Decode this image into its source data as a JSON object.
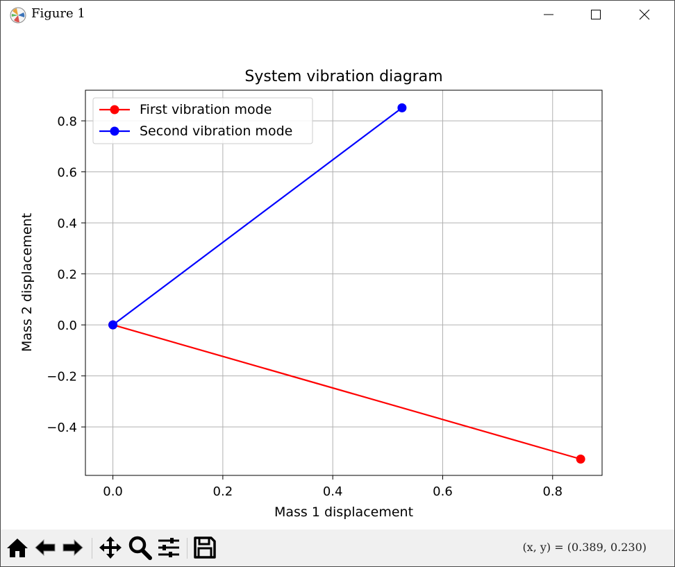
{
  "window": {
    "title": "Figure 1",
    "icon": "matplotlib-icon",
    "controls": [
      "minimize-icon",
      "maximize-icon",
      "close-icon"
    ]
  },
  "toolbar": {
    "buttons": [
      "home-icon",
      "back-arrow-icon",
      "forward-arrow-icon",
      "pan-icon",
      "zoom-magnifier-icon",
      "configure-subplots-icon",
      "save-floppy-icon"
    ],
    "coords_label": "(x, y) = (0.389, 0.230)"
  },
  "chart_data": {
    "type": "line",
    "title": "System vibration diagram",
    "xlabel": "Mass 1 displacement",
    "ylabel": "Mass 2 displacement",
    "xlim": [
      -0.05,
      0.89
    ],
    "ylim": [
      -0.59,
      0.92
    ],
    "xticks": [
      0.0,
      0.2,
      0.4,
      0.6,
      0.8
    ],
    "xtick_labels": [
      "0.0",
      "0.2",
      "0.4",
      "0.6",
      "0.8"
    ],
    "yticks": [
      0.8,
      0.6,
      0.4,
      0.2,
      0.0,
      -0.2,
      -0.4
    ],
    "ytick_labels": [
      "0.8",
      "0.6",
      "0.4",
      "0.2",
      "0.0",
      "−0.2",
      "−0.4"
    ],
    "grid": true,
    "legend_position": "top-left",
    "series": [
      {
        "name": "First vibration mode",
        "color": "#ff0000",
        "x": [
          0.0,
          0.851
        ],
        "y": [
          0.0,
          -0.526
        ],
        "marker": "circle"
      },
      {
        "name": "Second vibration mode",
        "color": "#0000ff",
        "x": [
          0.0,
          0.526
        ],
        "y": [
          0.0,
          0.851
        ],
        "marker": "circle"
      }
    ]
  }
}
